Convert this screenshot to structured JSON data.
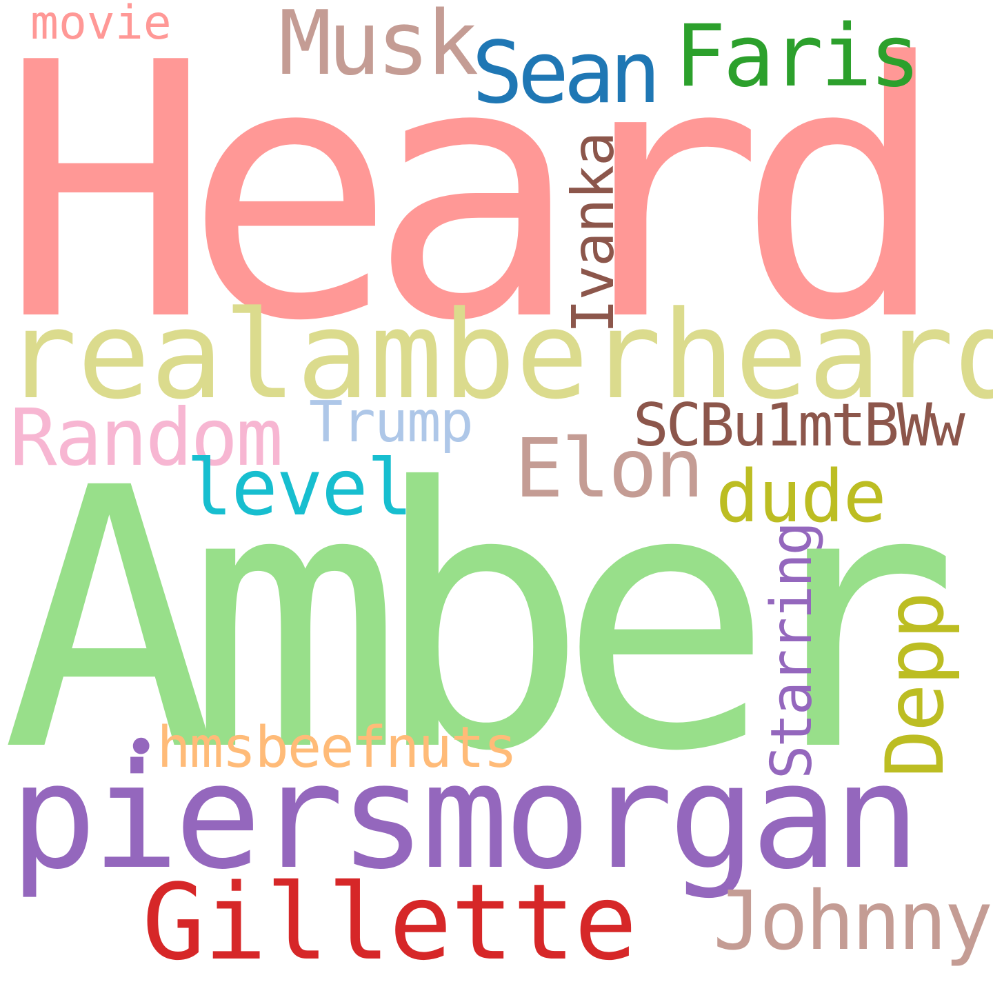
{
  "words": {
    "heard": {
      "text": "Heard",
      "color": "#ff9896"
    },
    "amber": {
      "text": "Amber",
      "color": "#98df8a"
    },
    "piersmorgan": {
      "text": "piersmorgan",
      "color": "#9467bd"
    },
    "realamberheard": {
      "text": "realamberheard",
      "color": "#dbdb8d"
    },
    "gillette": {
      "text": "Gillette",
      "color": "#d62728"
    },
    "musk": {
      "text": "Musk",
      "color": "#c49c94"
    },
    "sean": {
      "text": "Sean",
      "color": "#1f77b4"
    },
    "faris": {
      "text": "Faris",
      "color": "#2ca02c"
    },
    "random": {
      "text": "Random",
      "color": "#f7b6d2"
    },
    "elon": {
      "text": "Elon",
      "color": "#c49c94"
    },
    "level": {
      "text": "level",
      "color": "#17becf"
    },
    "dude": {
      "text": "dude",
      "color": "#bcbd22"
    },
    "johnny": {
      "text": "Johnny",
      "color": "#c49c94"
    },
    "scbu": {
      "text": "SCBu1mtBWw",
      "color": "#8c564b"
    },
    "trump": {
      "text": "Trump",
      "color": "#aec7e8"
    },
    "hmsbeefnuts": {
      "text": "hmsbeefnuts",
      "color": "#ffbb78"
    },
    "movie": {
      "text": "movie",
      "color": "#ff9896"
    },
    "ivanka": {
      "text": "Ivanka",
      "color": "#8c564b"
    },
    "starring": {
      "text": "Starring",
      "color": "#9467bd"
    },
    "depp": {
      "text": "Depp",
      "color": "#bcbd22"
    }
  }
}
